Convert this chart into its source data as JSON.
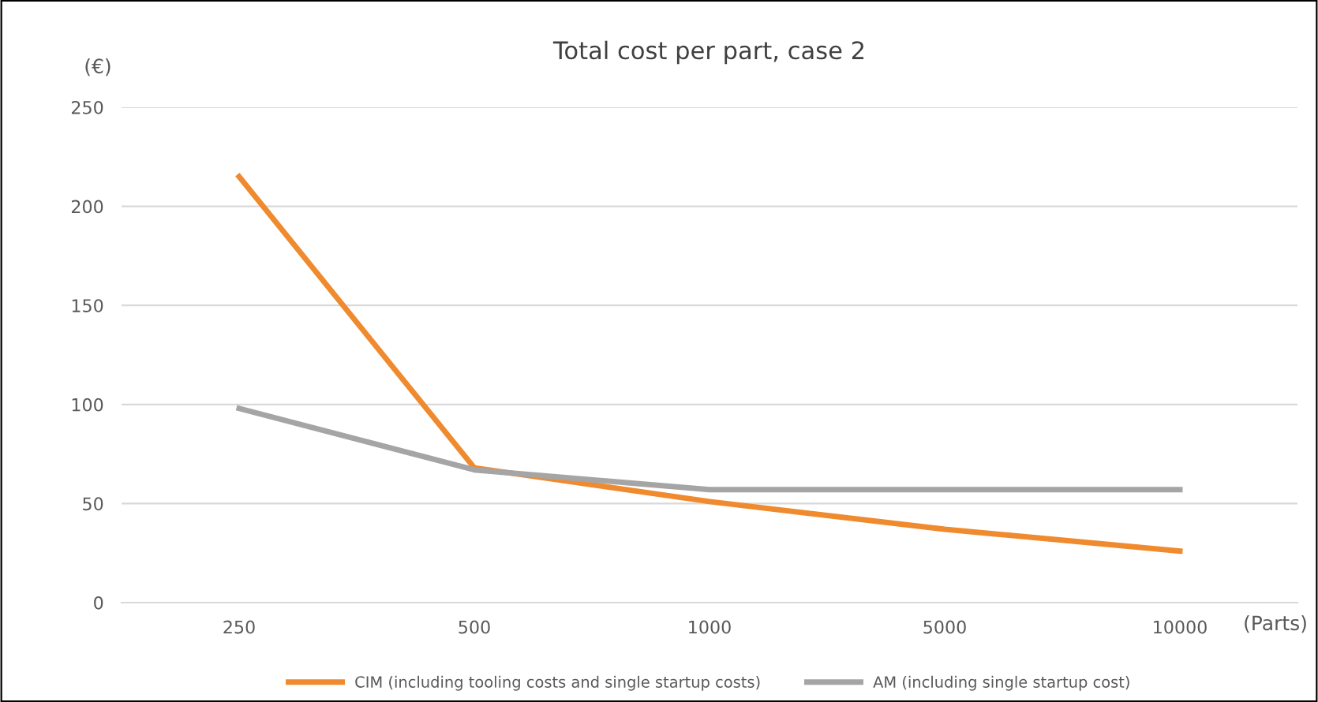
{
  "chart_data": {
    "type": "line",
    "title": "Total cost per part, case 2",
    "ylabel": "(€)",
    "xlabel": "(Parts)",
    "categories": [
      "250",
      "500",
      "1000",
      "5000",
      "10000"
    ],
    "series": [
      {
        "name": "CIM (including tooling costs and single startup costs)",
        "color": "#f08a2e",
        "values": [
          215,
          68,
          51,
          37,
          26
        ]
      },
      {
        "name": "AM (including single startup cost)",
        "color": "#a5a5a5",
        "values": [
          98,
          67,
          57,
          57,
          57
        ]
      }
    ],
    "ylim": [
      0,
      250
    ],
    "yticks": [
      0,
      50,
      100,
      150,
      200,
      250
    ],
    "grid": "y",
    "legend": "bottom",
    "marker": "none",
    "line_style": "solid"
  }
}
